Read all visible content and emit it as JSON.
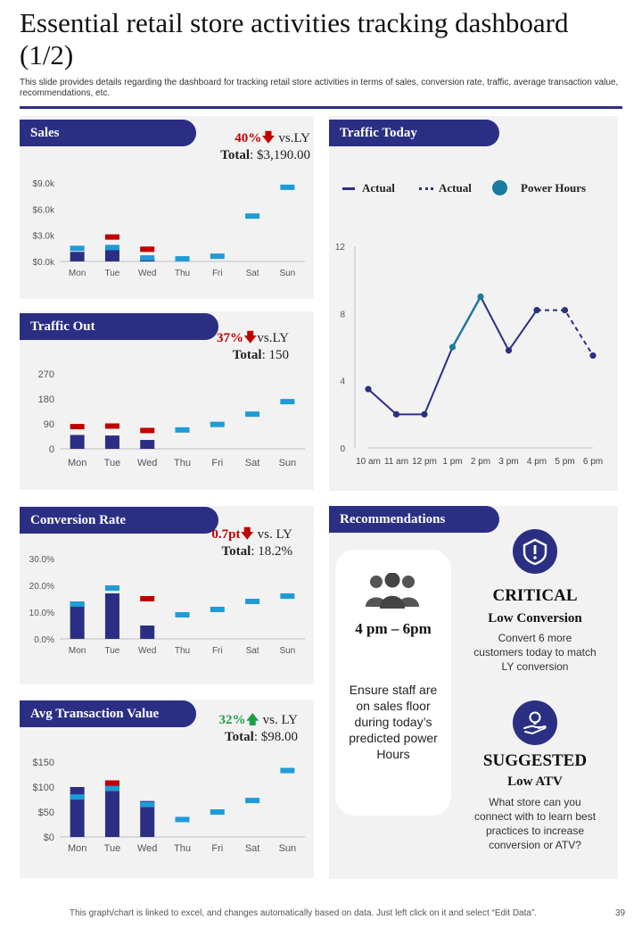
{
  "header": {
    "title": "Essential retail store activities tracking dashboard (1/2)",
    "subtitle": "This slide provides details regarding the dashboard for tracking retail store activities in terms of sales, conversion rate, traffic, average transaction value, recommendations, etc."
  },
  "colors": {
    "navy": "#2b2f84",
    "blue": "#1f9bd7",
    "red": "#c00000",
    "green": "#1e9e45",
    "teal": "#1a7ba0"
  },
  "sales": {
    "label": "Sales",
    "pct": "40%",
    "vs": "vs.LY",
    "total_label": "Total",
    "total_value": ": $3,190.00",
    "arrow_icon": "arrow-down-icon"
  },
  "traffic_out": {
    "label": "Traffic Out",
    "pct": "37%",
    "vs": "vs.LY",
    "total_label": "Total",
    "total_value": ": 150",
    "arrow_icon": "arrow-down-icon"
  },
  "conversion": {
    "label": "Conversion Rate",
    "pct": "0.7pt",
    "vs": "vs. LY",
    "total_label": "Total",
    "total_value": ": 18.2%",
    "arrow_icon": "arrow-down-icon"
  },
  "avg_txn": {
    "label": "Avg Transaction Value",
    "pct": "32%",
    "vs": "vs. LY",
    "total_label": "Total",
    "total_value": ": $98.00",
    "arrow_icon": "arrow-up-icon"
  },
  "traffic_today": {
    "label": "Traffic Today",
    "legend": {
      "actual": "Actual",
      "actual_dashed": "Actual",
      "power": "Power Hours"
    }
  },
  "recommendations": {
    "label": "Recommendations",
    "time": "4 pm – 6pm",
    "card_text": "Ensure staff are on sales floor during today’s predicted power Hours",
    "critical": {
      "title": "CRITICAL",
      "sub": "Low Conversion",
      "desc": "Convert  6 more customers today to match LY conversion"
    },
    "suggested": {
      "title": "SUGGESTED",
      "sub": "Low ATV",
      "desc": "What store can you connect with to learn best practices to increase conversion or ATV?"
    }
  },
  "footer": {
    "note": "This graph/chart is linked to excel,  and changes automatically based on data. Just left click on it and select “Edit Data”.",
    "page": "39"
  },
  "chart_data": [
    {
      "id": "sales",
      "type": "bar",
      "title": "Sales",
      "categories": [
        "Mon",
        "Tue",
        "Wed",
        "Thu",
        "Fri",
        "Sat",
        "Sun"
      ],
      "ylim": [
        0,
        9000
      ],
      "yticks": [
        0,
        3000,
        6000,
        9000
      ],
      "ytick_labels": [
        "$0.0k",
        "$3.0k",
        "$6.0k",
        "$9.0k"
      ],
      "actual": [
        1100,
        1600,
        400,
        null,
        null,
        null,
        null
      ],
      "target": [
        1500,
        1600,
        400,
        300,
        600,
        5200,
        8500
      ],
      "last_year": [
        null,
        2800,
        1400,
        null,
        null,
        null,
        null
      ]
    },
    {
      "id": "traffic_out",
      "type": "bar",
      "title": "Traffic Out",
      "categories": [
        "Mon",
        "Tue",
        "Wed",
        "Thu",
        "Fri",
        "Sat",
        "Sun"
      ],
      "ylim": [
        0,
        270
      ],
      "yticks": [
        0,
        90,
        180,
        270
      ],
      "ytick_labels": [
        "0",
        "90",
        "180",
        "270"
      ],
      "actual": [
        50,
        48,
        32,
        null,
        null,
        null,
        null
      ],
      "target": [
        null,
        null,
        null,
        68,
        88,
        125,
        170
      ],
      "last_year": [
        80,
        82,
        66,
        null,
        null,
        null,
        null
      ]
    },
    {
      "id": "conversion",
      "type": "bar",
      "title": "Conversion Rate",
      "categories": [
        "Mon",
        "Tue",
        "Wed",
        "Thu",
        "Fri",
        "Sat",
        "Sun"
      ],
      "ylim": [
        0,
        30
      ],
      "yticks": [
        0,
        10,
        20,
        30
      ],
      "ytick_labels": [
        "0.0%",
        "10.0%",
        "20.0%",
        "30.0%"
      ],
      "actual": [
        14,
        17,
        5,
        null,
        null,
        null,
        null
      ],
      "target": [
        13,
        19,
        null,
        9,
        11,
        14,
        16
      ],
      "last_year": [
        null,
        null,
        15,
        null,
        null,
        null,
        null
      ]
    },
    {
      "id": "avg_txn",
      "type": "bar",
      "title": "Avg Transaction Value",
      "categories": [
        "Mon",
        "Tue",
        "Wed",
        "Thu",
        "Fri",
        "Sat",
        "Sun"
      ],
      "ylim": [
        0,
        150
      ],
      "yticks": [
        0,
        50,
        100,
        150
      ],
      "ytick_labels": [
        "$0",
        "$50",
        "$100",
        "$150"
      ],
      "actual": [
        100,
        108,
        72,
        null,
        null,
        null,
        null
      ],
      "target": [
        80,
        97,
        65,
        35,
        50,
        73,
        133
      ],
      "last_year": [
        null,
        108,
        null,
        null,
        null,
        null,
        null
      ]
    },
    {
      "id": "traffic_today",
      "type": "line",
      "title": "Traffic Today",
      "x": [
        "10 am",
        "11 am",
        "12 pm",
        "1 pm",
        "2 pm",
        "3 pm",
        "4 pm",
        "5 pm",
        "6 pm"
      ],
      "ylim": [
        0,
        12
      ],
      "yticks": [
        0,
        4,
        8,
        12
      ],
      "ytick_labels": [
        "0",
        "4",
        "8",
        "12"
      ],
      "values": [
        3.5,
        2.0,
        2.0,
        6.0,
        9.0,
        5.8,
        8.2,
        8.2,
        5.5
      ],
      "actual_solid_until": 6,
      "power_hours_segment": [
        3,
        4
      ]
    }
  ]
}
